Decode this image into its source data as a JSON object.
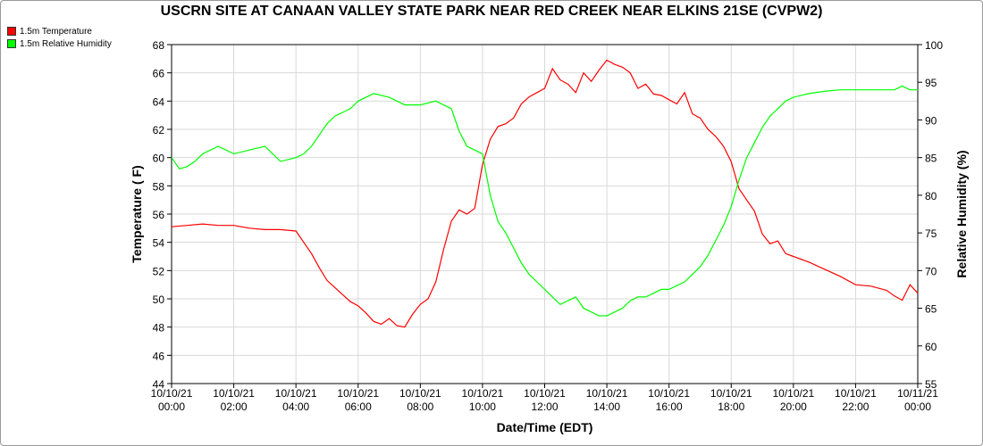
{
  "chart_data": {
    "type": "line",
    "title": "USCRN SITE AT CANAAN VALLEY STATE PARK NEAR RED CREEK NEAR ELKINS 21SE (CVPW2)",
    "xlabel": "Date/Time (EDT)",
    "ylabel_left": "Temperature ( F)",
    "ylabel_right": "Relative Humidity (%)",
    "xlim": [
      0,
      24
    ],
    "ylim_left": [
      44,
      68
    ],
    "ylim_right": [
      55,
      100
    ],
    "yticks_left": [
      "44",
      "46",
      "48",
      "50",
      "52",
      "54",
      "56",
      "58",
      "60",
      "62",
      "64",
      "66",
      "68"
    ],
    "yticks_right": [
      "55",
      "60",
      "65",
      "70",
      "75",
      "80",
      "85",
      "90",
      "95",
      "100"
    ],
    "xticks": [
      {
        "date": "10/10/21",
        "time": "00:00"
      },
      {
        "date": "10/10/21",
        "time": "02:00"
      },
      {
        "date": "10/10/21",
        "time": "04:00"
      },
      {
        "date": "10/10/21",
        "time": "06:00"
      },
      {
        "date": "10/10/21",
        "time": "08:00"
      },
      {
        "date": "10/10/21",
        "time": "10:00"
      },
      {
        "date": "10/10/21",
        "time": "12:00"
      },
      {
        "date": "10/10/21",
        "time": "14:00"
      },
      {
        "date": "10/10/21",
        "time": "16:00"
      },
      {
        "date": "10/10/21",
        "time": "18:00"
      },
      {
        "date": "10/10/21",
        "time": "20:00"
      },
      {
        "date": "10/10/21",
        "time": "22:00"
      },
      {
        "date": "10/11/21",
        "time": "00:00"
      }
    ],
    "grid": true,
    "legend_position": "top-left",
    "series": [
      {
        "name": "1.5m Temperature",
        "axis": "left",
        "color": "#ff0000",
        "x": [
          0,
          0.5,
          1,
          1.5,
          2,
          2.5,
          3,
          3.5,
          4,
          4.25,
          4.5,
          4.75,
          5,
          5.25,
          5.5,
          5.75,
          6,
          6.25,
          6.5,
          6.75,
          7,
          7.25,
          7.5,
          7.75,
          8,
          8.25,
          8.5,
          8.75,
          9,
          9.25,
          9.5,
          9.75,
          10,
          10.25,
          10.5,
          10.75,
          11,
          11.25,
          11.5,
          11.75,
          12,
          12.25,
          12.5,
          12.75,
          13,
          13.25,
          13.5,
          13.75,
          14,
          14.25,
          14.5,
          14.75,
          15,
          15.25,
          15.5,
          15.75,
          16,
          16.25,
          16.5,
          16.75,
          17,
          17.25,
          17.5,
          17.75,
          18,
          18.25,
          18.5,
          18.75,
          19,
          19.25,
          19.5,
          19.75,
          20,
          20.5,
          21,
          21.5,
          22,
          22.5,
          23,
          23.25,
          23.5,
          23.75,
          24
        ],
        "values": [
          55.1,
          55.2,
          55.3,
          55.2,
          55.2,
          55.0,
          54.9,
          54.9,
          54.8,
          54.0,
          53.2,
          52.2,
          51.3,
          50.8,
          50.3,
          49.8,
          49.5,
          49.0,
          48.4,
          48.2,
          48.6,
          48.1,
          48.0,
          48.9,
          49.6,
          50.0,
          51.2,
          53.5,
          55.5,
          56.3,
          56.0,
          56.4,
          59.5,
          61.3,
          62.2,
          62.4,
          62.8,
          63.8,
          64.3,
          64.6,
          64.9,
          66.3,
          65.5,
          65.2,
          64.6,
          66.0,
          65.4,
          66.2,
          66.9,
          66.6,
          66.4,
          66.0,
          64.9,
          65.2,
          64.5,
          64.4,
          64.1,
          63.8,
          64.6,
          63.1,
          62.8,
          62.0,
          61.5,
          60.8,
          59.7,
          57.8,
          57.0,
          56.2,
          54.6,
          53.9,
          54.1,
          53.2,
          53.0,
          52.6,
          52.1,
          51.6,
          51.0,
          50.9,
          50.6,
          50.2,
          49.9,
          51.0,
          50.4
        ],
        "values_unit": "F"
      },
      {
        "name": "1.5m Relative Humidity",
        "axis": "right",
        "color": "#00ff00",
        "x": [
          0,
          0.25,
          0.5,
          0.75,
          1,
          1.25,
          1.5,
          2,
          2.5,
          3,
          3.25,
          3.5,
          4,
          4.25,
          4.5,
          4.75,
          5,
          5.25,
          5.5,
          5.75,
          6,
          6.5,
          7,
          7.25,
          7.5,
          8,
          8.5,
          9,
          9.25,
          9.5,
          9.75,
          10,
          10.25,
          10.5,
          10.75,
          11,
          11.25,
          11.5,
          11.75,
          12,
          12.25,
          12.5,
          12.75,
          13,
          13.25,
          13.5,
          13.75,
          14,
          14.25,
          14.5,
          14.75,
          15,
          15.25,
          15.5,
          15.75,
          16,
          16.25,
          16.5,
          16.75,
          17,
          17.25,
          17.5,
          17.75,
          18,
          18.25,
          18.5,
          18.75,
          19,
          19.25,
          19.5,
          19.75,
          20,
          20.5,
          21,
          21.5,
          22,
          22.5,
          23,
          23.25,
          23.5,
          23.75,
          24
        ],
        "values": [
          85.0,
          83.5,
          83.8,
          84.5,
          85.5,
          86.0,
          86.5,
          85.5,
          86.0,
          86.5,
          85.5,
          84.5,
          85.0,
          85.5,
          86.5,
          88.0,
          89.5,
          90.5,
          91.0,
          91.5,
          92.5,
          93.5,
          93.0,
          92.5,
          92.0,
          92.0,
          92.5,
          91.5,
          88.5,
          86.5,
          86.0,
          85.5,
          80.0,
          76.5,
          75.0,
          73.0,
          71.0,
          69.5,
          68.5,
          67.5,
          66.5,
          65.5,
          66.0,
          66.5,
          65.0,
          64.5,
          64.0,
          64.0,
          64.5,
          65.0,
          66.0,
          66.5,
          66.5,
          67.0,
          67.5,
          67.5,
          68.0,
          68.5,
          69.5,
          70.5,
          72.0,
          74.0,
          76.0,
          78.5,
          82.0,
          85.0,
          87.0,
          89.0,
          90.5,
          91.5,
          92.5,
          93.0,
          93.5,
          93.8,
          94.0,
          94.0,
          94.0,
          94.0,
          94.0,
          94.5,
          94.0,
          94.0
        ],
        "values_unit": "%"
      }
    ]
  }
}
